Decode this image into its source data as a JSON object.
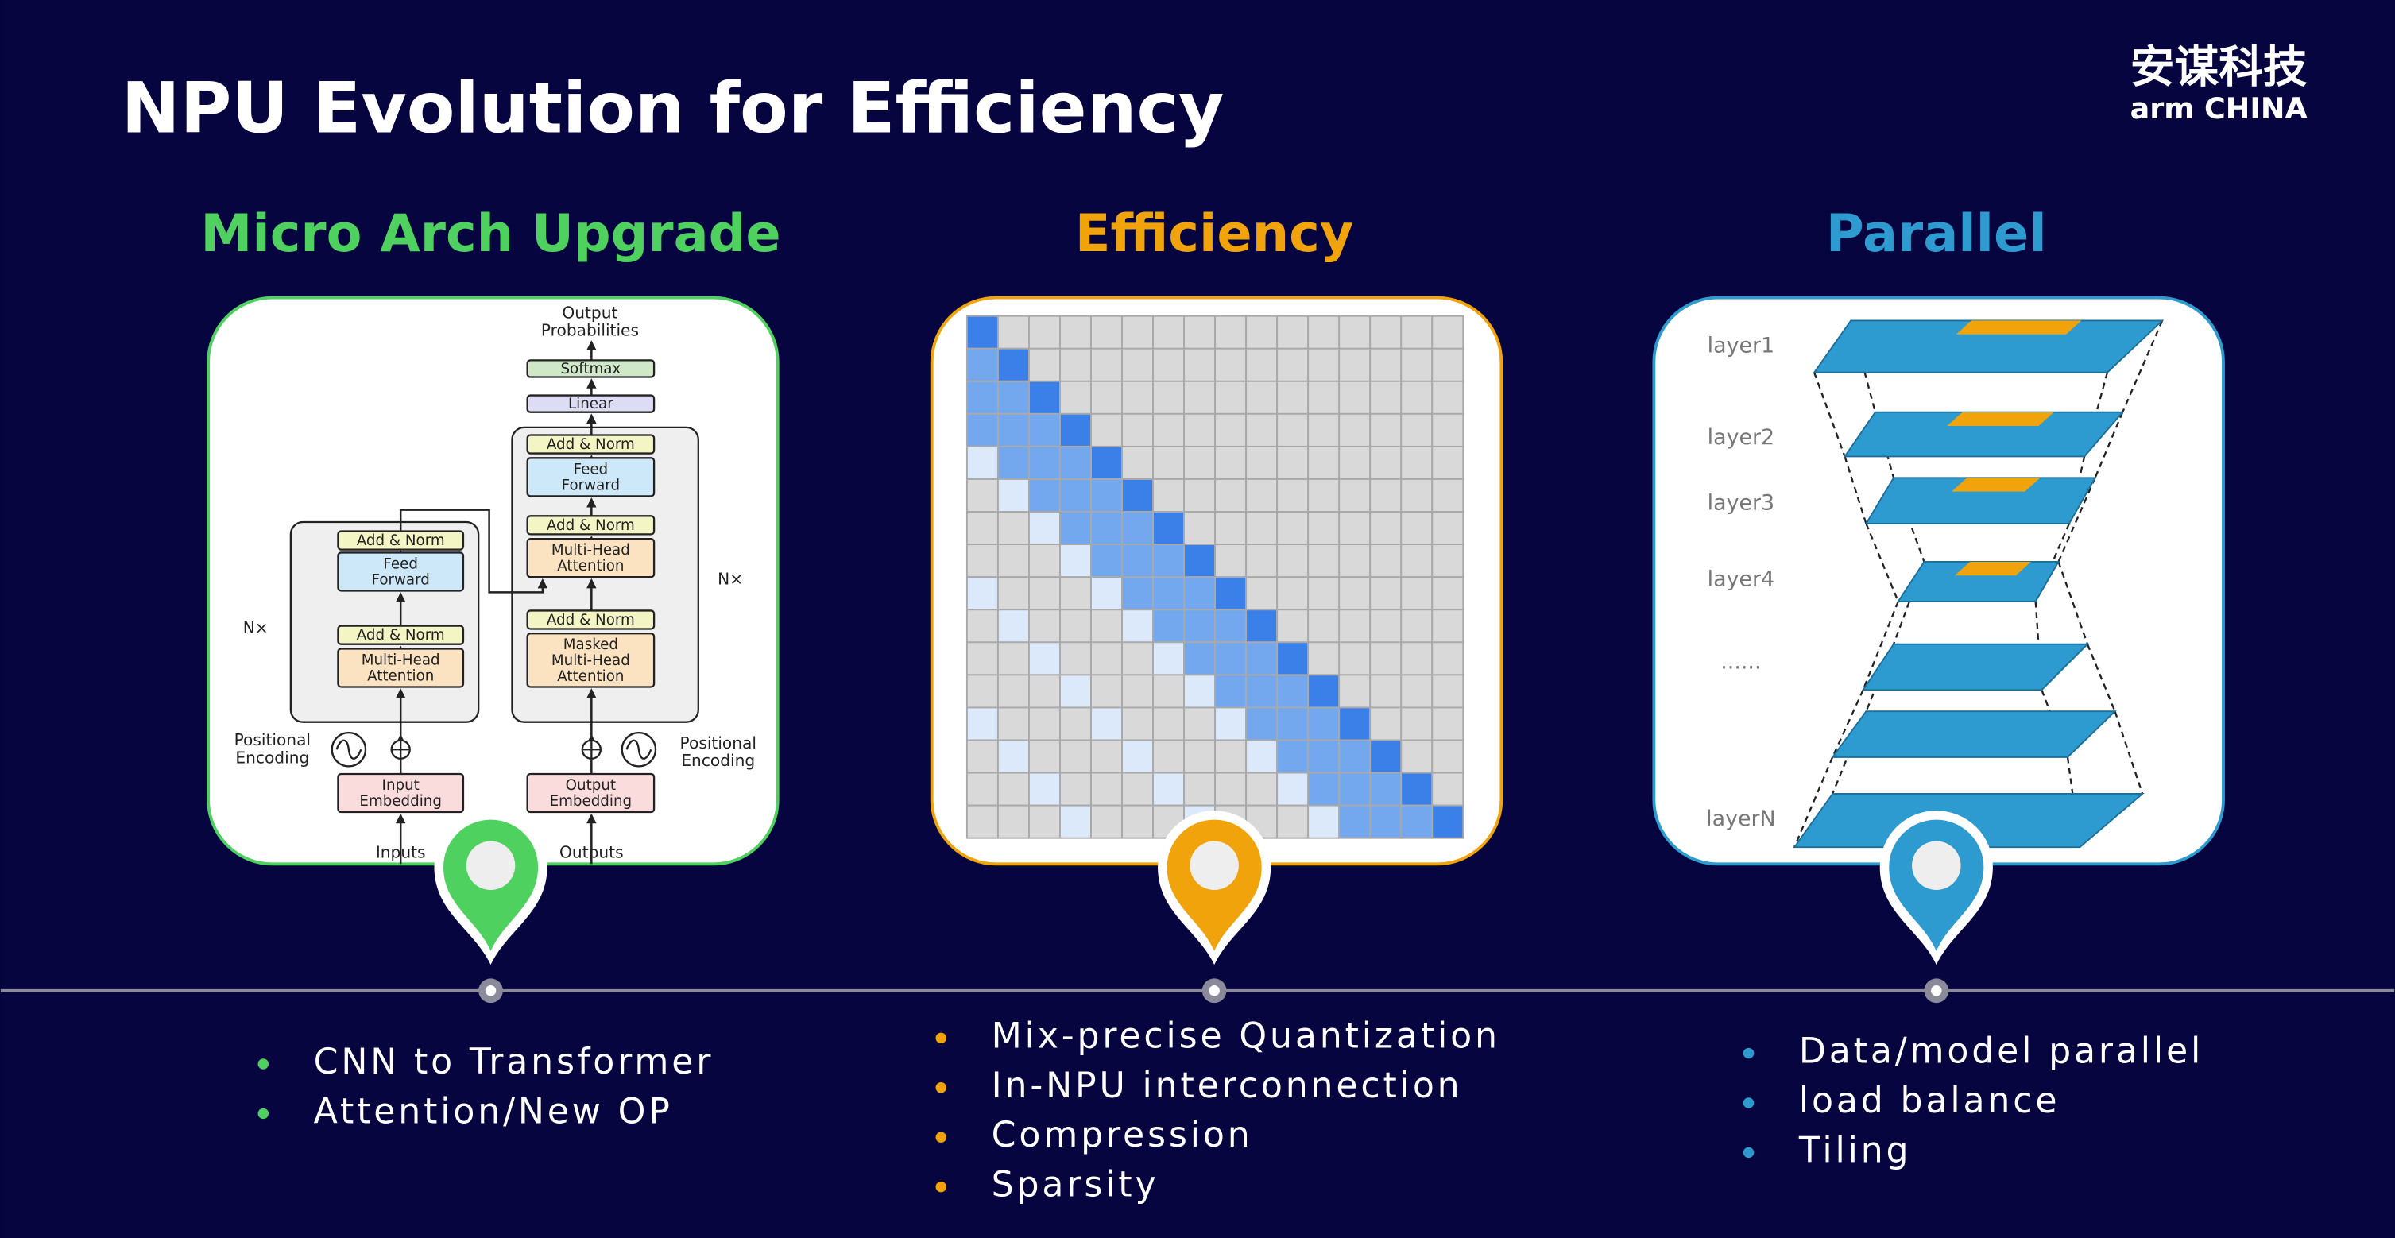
{
  "header": {
    "title": "NPU Evolution for Efficiency",
    "logo": {
      "chinese": "安谋科技",
      "english": "arm CHINA"
    }
  },
  "columns": [
    {
      "title": "Micro Arch Upgrade",
      "color": "#4fd160",
      "bullets": [
        "CNN to Transformer",
        "Attention/New OP"
      ]
    },
    {
      "title": "Efficiency",
      "color": "#f0a30a",
      "bullets": [
        "Mix-precise Quantization",
        "In-NPU interconnection",
        "Compression",
        "Sparsity"
      ]
    },
    {
      "title": "Parallel",
      "color": "#2e9bd0",
      "bullets": [
        "Data/model parallel",
        "load balance",
        "Tiling"
      ]
    }
  ],
  "transformer": {
    "output_probabilities": [
      "Output",
      "Probabilities"
    ],
    "softmax": "Softmax",
    "linear": "Linear",
    "add_norm": "Add & Norm",
    "feed_forward": [
      "Feed",
      "Forward"
    ],
    "multi_head_attention": [
      "Multi-Head",
      "Attention"
    ],
    "masked_multi_head_attention": [
      "Masked",
      "Multi-Head",
      "Attention"
    ],
    "nx": "N×",
    "positional_encoding": [
      "Positional",
      "Encoding"
    ],
    "input_embedding": [
      "Input",
      "Embedding"
    ],
    "output_embedding": [
      "Output",
      "Embedding"
    ],
    "inputs": "Inputs",
    "outputs": "Outputs"
  },
  "parallel_layers": {
    "labels": [
      "layer1",
      "layer2",
      "layer3",
      "layer4",
      "......",
      "layerN"
    ]
  }
}
